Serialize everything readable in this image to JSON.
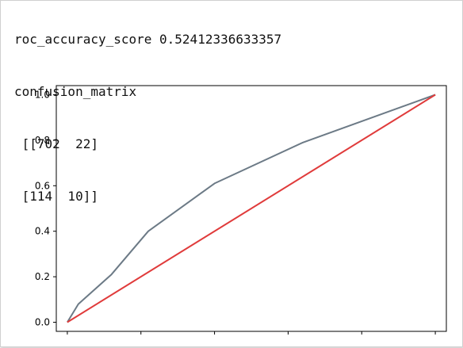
{
  "output": {
    "lines": [
      "roc_accuracy_score 0.52412336633357",
      "confusion_matrix",
      " [[702  22]",
      " [114  10]]"
    ]
  },
  "chart_data": {
    "type": "line",
    "title": "",
    "xlabel": "",
    "ylabel": "",
    "xlim": [
      -0.03,
      1.03
    ],
    "ylim": [
      -0.04,
      1.04
    ],
    "yticks": [
      "0.0",
      "0.2",
      "0.4",
      "0.6",
      "0.8",
      "1.0"
    ],
    "ytick_values": [
      0.0,
      0.2,
      0.4,
      0.6,
      0.8,
      1.0
    ],
    "xtick_values": [
      0.0,
      0.2,
      0.4,
      0.6,
      0.8,
      1.0
    ],
    "xtick_labels_visible": false,
    "grid": false,
    "series": [
      {
        "color": "#6c7a86",
        "x": [
          0.0,
          0.03,
          0.12,
          0.22,
          0.4,
          0.64,
          1.0
        ],
        "y": [
          0.0,
          0.08,
          0.21,
          0.4,
          0.61,
          0.79,
          1.0
        ]
      },
      {
        "color": "#e03b3b",
        "x": [
          0.0,
          1.0
        ],
        "y": [
          0.0,
          1.0
        ]
      }
    ]
  }
}
